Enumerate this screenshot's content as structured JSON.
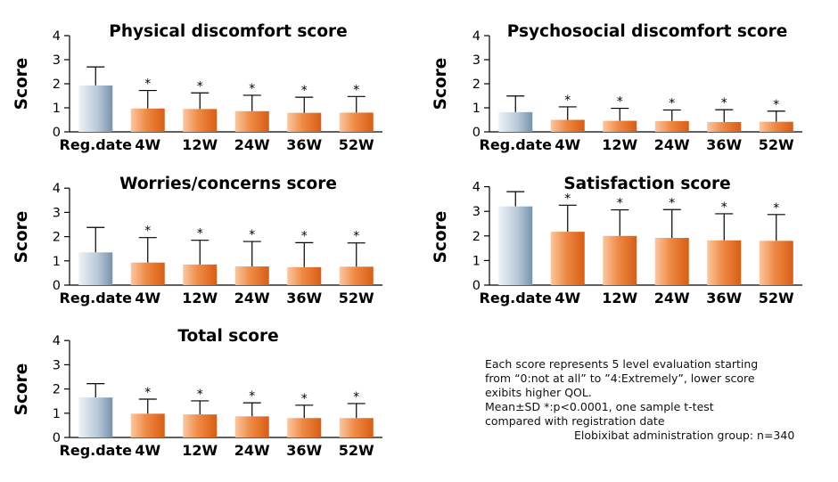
{
  "chart_data": [
    {
      "type": "bar",
      "title": "Physical discomfort score",
      "ylabel": "Score",
      "ylim": [
        0,
        4
      ],
      "yticks": [
        "0",
        "1",
        "2",
        "3",
        "4"
      ],
      "categories": [
        "Reg.date",
        "4W",
        "12W",
        "24W",
        "36W",
        "52W"
      ],
      "values": [
        1.93,
        0.97,
        0.95,
        0.86,
        0.79,
        0.8
      ],
      "errors": [
        0.77,
        0.75,
        0.67,
        0.66,
        0.65,
        0.67
      ],
      "significance": [
        "",
        "*",
        "*",
        "*",
        "*",
        "*"
      ]
    },
    {
      "type": "bar",
      "title": "Psychosocial discomfort score",
      "ylabel": "Score",
      "ylim": [
        0,
        4
      ],
      "yticks": [
        "0",
        "1",
        "2",
        "3",
        "4"
      ],
      "categories": [
        "Reg.date",
        "4W",
        "12W",
        "24W",
        "36W",
        "52W"
      ],
      "values": [
        0.82,
        0.5,
        0.46,
        0.45,
        0.41,
        0.42
      ],
      "errors": [
        0.67,
        0.54,
        0.52,
        0.46,
        0.51,
        0.44
      ],
      "significance": [
        "",
        "*",
        "*",
        "*",
        "*",
        "*"
      ]
    },
    {
      "type": "bar",
      "title": "Worries/concerns score",
      "ylabel": "Score",
      "ylim": [
        0,
        4
      ],
      "yticks": [
        "0",
        "1",
        "2",
        "3",
        "4"
      ],
      "categories": [
        "Reg.date",
        "4W",
        "12W",
        "24W",
        "36W",
        "52W"
      ],
      "values": [
        1.35,
        0.93,
        0.85,
        0.77,
        0.74,
        0.76
      ],
      "errors": [
        1.03,
        1.03,
        1.0,
        1.03,
        1.01,
        0.98
      ],
      "significance": [
        "",
        "*",
        "*",
        "*",
        "*",
        "*"
      ]
    },
    {
      "type": "bar",
      "title": "Satisfaction score",
      "ylabel": "Score",
      "ylim": [
        0,
        4
      ],
      "yticks": [
        "0",
        "1",
        "2",
        "3",
        "4"
      ],
      "categories": [
        "Reg.date",
        "4W",
        "12W",
        "24W",
        "36W",
        "52W"
      ],
      "values": [
        3.2,
        2.17,
        2.0,
        1.92,
        1.82,
        1.8
      ],
      "errors": [
        0.6,
        1.08,
        1.06,
        1.15,
        1.08,
        1.07
      ],
      "significance": [
        "",
        "*",
        "*",
        "*",
        "*",
        "*"
      ]
    },
    {
      "type": "bar",
      "title": "Total score",
      "ylabel": "Score",
      "ylim": [
        0,
        4
      ],
      "yticks": [
        "0",
        "1",
        "2",
        "3",
        "4"
      ],
      "categories": [
        "Reg.date",
        "4W",
        "12W",
        "24W",
        "36W",
        "52W"
      ],
      "values": [
        1.65,
        0.98,
        0.95,
        0.87,
        0.8,
        0.8
      ],
      "errors": [
        0.57,
        0.6,
        0.56,
        0.56,
        0.53,
        0.6
      ],
      "significance": [
        "",
        "*",
        "*",
        "*",
        "*",
        "*"
      ]
    }
  ],
  "notes": {
    "line1": "Each score represents 5 level evaluation starting",
    "line2": "from “0:not at all” to ”4:Extremely”, lower score",
    "line3": "exibits higher QOL.",
    "line4": "Mean±SD    *:p<0.0001, one sample t-test",
    "line5": "compared with registration date",
    "line6": "Elobixibat administration group: n=340"
  },
  "colors": {
    "baseline_gradient": [
      "#e6ecf2",
      "#7f9bb5"
    ],
    "treatment_gradient": [
      "#f9b98a",
      "#e2661b"
    ],
    "axis": "#000000"
  }
}
